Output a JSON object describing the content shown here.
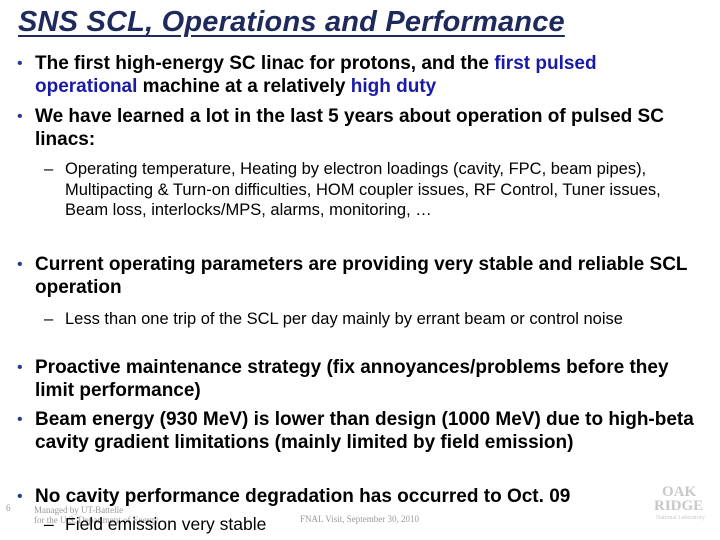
{
  "title": "SNS SCL, Operations and Performance",
  "bullets": {
    "b1_a": "The first high-energy SC linac for protons, and the ",
    "b1_hl1": "first pulsed",
    "b1_line2_hl": "operational",
    "b1_b": " machine at a relatively ",
    "b1_hl2": "high duty",
    "b2": "We have learned a lot in the last 5 years about operation of pulsed SC linacs:",
    "s1": "Operating temperature, Heating by electron loadings (cavity, FPC, beam pipes), Multipacting & Turn-on difficulties, HOM coupler issues, RF Control, Tuner issues, Beam loss, interlocks/MPS, alarms, monitoring, …",
    "b3": "Current operating parameters are providing very stable and reliable SCL operation",
    "s2": "Less than one trip of the SCL per day mainly by errant beam or control noise",
    "b4": "Proactive maintenance strategy (fix annoyances/problems before they limit performance)",
    "b5": "Beam energy (930 MeV) is lower than design (1000 MeV) due to high-beta cavity gradient limitations (mainly limited by field emission)",
    "b6": "No cavity performance degradation has occurred to Oct. 09",
    "s3": "Field emission very stable"
  },
  "footer": {
    "slide_number": "6",
    "managed_by_1": "Managed by UT-Battelle",
    "managed_by_2": "for the U.S. Department of Energy",
    "event": "FNAL Visit, September 30, 2010"
  },
  "logo": {
    "word1": "OAK",
    "word2": "RIDGE",
    "word3": "National Laboratory"
  },
  "colors": {
    "title": "#1f2a5c",
    "highlight": "#1a1aa8",
    "bullet": "#2b3a8c"
  }
}
